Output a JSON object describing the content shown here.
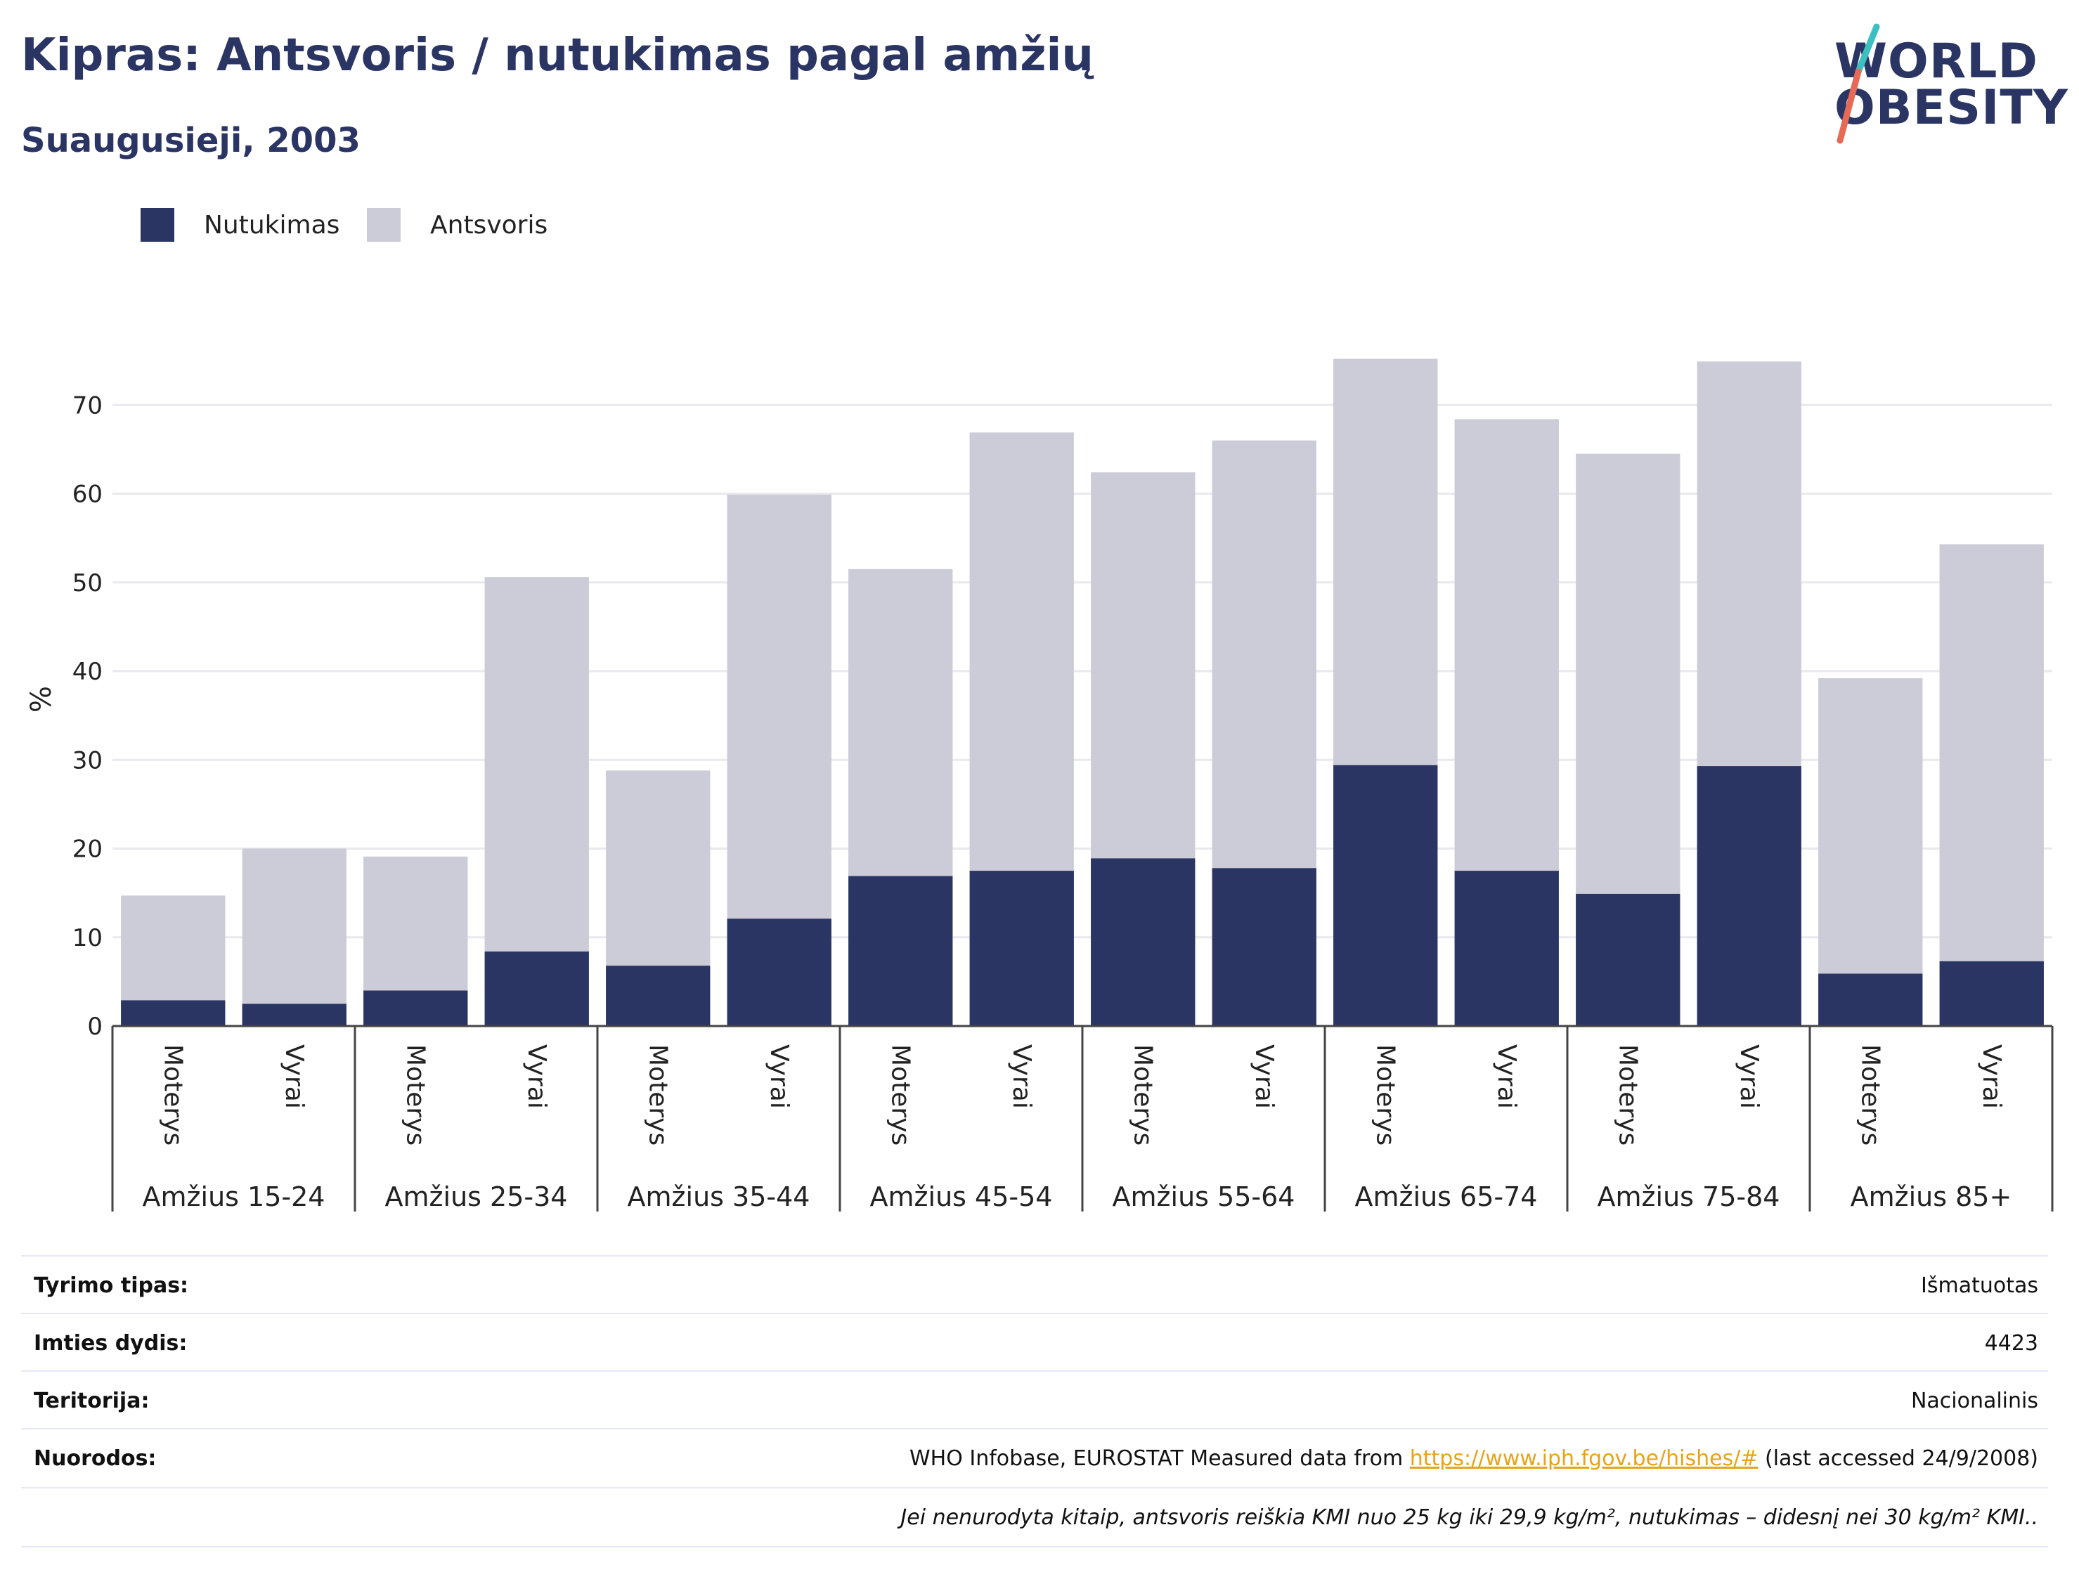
{
  "header": {
    "title": "Kipras: Antsvoris / nutukimas pagal amžių",
    "subtitle": "Suaugusieji, 2003"
  },
  "logo": {
    "line1": "WORLD",
    "line2": "OBESITY"
  },
  "colors": {
    "obesity": "#2b3564",
    "overweight": "#cbccd7",
    "text": "#2b3564",
    "grid": "#e9e9ee",
    "link": "#e8a317",
    "logo_teal": "#3bbfc0",
    "logo_red": "#e66a55"
  },
  "legend": {
    "obesity": "Nutukimas",
    "overweight": "Antsvoris"
  },
  "chart_data": {
    "type": "bar",
    "stacked": true,
    "ylabel": "%",
    "ylim": [
      0,
      80
    ],
    "yticks": [
      0,
      10,
      20,
      30,
      40,
      50,
      60,
      70
    ],
    "grid": true,
    "legend_position": "top-left",
    "groups": [
      "Amžius 15-24",
      "Amžius 25-34",
      "Amžius 35-44",
      "Amžius 45-54",
      "Amžius 55-64",
      "Amžius 65-74",
      "Amžius 75-84",
      "Amžius 85+"
    ],
    "subcategories": [
      "Moterys",
      "Vyrai"
    ],
    "series": [
      {
        "name": "Nutukimas",
        "values": [
          2.9,
          2.5,
          4.0,
          8.4,
          6.8,
          12.1,
          16.9,
          17.5,
          18.9,
          17.8,
          29.4,
          17.5,
          14.9,
          29.3,
          5.9,
          7.3
        ]
      },
      {
        "name": "Antsvoris",
        "values": [
          11.8,
          17.5,
          15.1,
          42.2,
          22.0,
          47.8,
          34.6,
          49.4,
          43.5,
          48.2,
          45.8,
          50.9,
          49.6,
          45.6,
          33.3,
          47.0
        ]
      }
    ]
  },
  "info": {
    "rows": [
      {
        "label": "Tyrimo tipas:",
        "value": "Išmatuotas"
      },
      {
        "label": "Imties dydis:",
        "value": "4423"
      },
      {
        "label": "Teritorija:",
        "value": "Nacionalinis"
      }
    ],
    "refs_label": "Nuorodos:",
    "refs_prefix": "WHO Infobase, EUROSTAT Measured data from ",
    "refs_link": "https://www.iph.fgov.be/hishes/#",
    "refs_suffix": " (last accessed 24/9/2008)",
    "note": "Jei nenurodyta kitaip, antsvoris reiškia KMI nuo 25 kg iki 29,9 kg/m², nutukimas – didesnį nei 30 kg/m² KMI.."
  }
}
